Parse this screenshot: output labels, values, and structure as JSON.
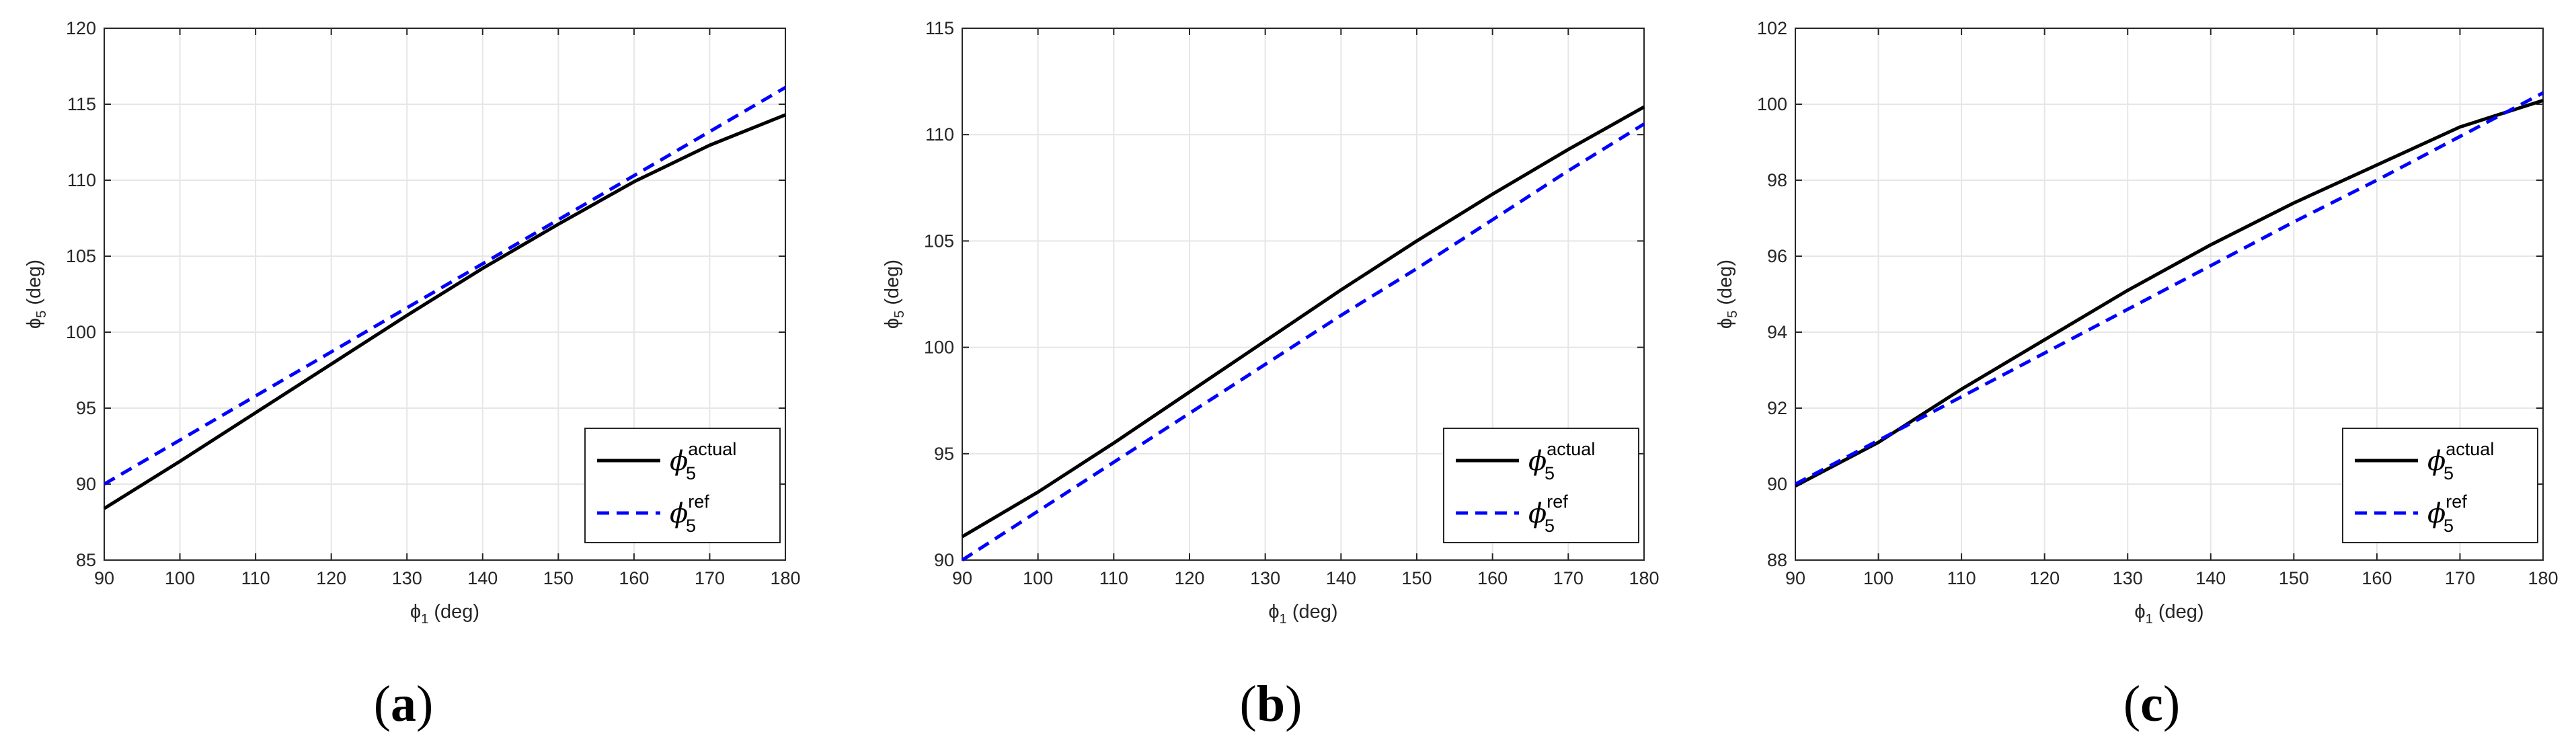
{
  "chart_data": [
    {
      "type": "line",
      "panel_label": "(a)",
      "panel_letter": "a",
      "xlabel": "ϕ1 (deg)",
      "ylabel": "ϕ5 (deg)",
      "xlim": [
        90,
        180
      ],
      "ylim": [
        85,
        120
      ],
      "xticks": [
        90,
        100,
        110,
        120,
        130,
        140,
        150,
        160,
        170,
        180
      ],
      "yticks": [
        85,
        90,
        95,
        100,
        105,
        110,
        115,
        120
      ],
      "grid": true,
      "legend_position": "bottom-right",
      "x": [
        90,
        100,
        110,
        120,
        130,
        140,
        150,
        160,
        170,
        180
      ],
      "series": [
        {
          "name": "ϕ5 actual",
          "symbol": "ϕ",
          "sub": "5",
          "sup": "actual",
          "color": "#000000",
          "style": "solid",
          "values": [
            88.4,
            91.5,
            94.7,
            97.9,
            101.1,
            104.2,
            107.1,
            109.9,
            112.3,
            114.3
          ]
        },
        {
          "name": "ϕ5 ref",
          "symbol": "ϕ",
          "sub": "5",
          "sup": "ref",
          "color": "#0000ff",
          "style": "dashed",
          "values": [
            90.0,
            92.9,
            95.8,
            98.7,
            101.6,
            104.5,
            107.4,
            110.3,
            113.2,
            116.1
          ]
        }
      ]
    },
    {
      "type": "line",
      "panel_label": "(b)",
      "panel_letter": "b",
      "xlabel": "ϕ1 (deg)",
      "ylabel": "ϕ5 (deg)",
      "xlim": [
        90,
        180
      ],
      "ylim": [
        90,
        115
      ],
      "xticks": [
        90,
        100,
        110,
        120,
        130,
        140,
        150,
        160,
        170,
        180
      ],
      "yticks": [
        90,
        95,
        100,
        105,
        110,
        115
      ],
      "grid": true,
      "legend_position": "bottom-right",
      "x": [
        90,
        100,
        110,
        120,
        130,
        140,
        150,
        160,
        170,
        180
      ],
      "series": [
        {
          "name": "ϕ5 actual",
          "symbol": "ϕ",
          "sub": "5",
          "sup": "actual",
          "color": "#000000",
          "style": "solid",
          "values": [
            91.1,
            93.2,
            95.5,
            97.9,
            100.3,
            102.7,
            105.0,
            107.2,
            109.3,
            111.3
          ]
        },
        {
          "name": "ϕ5 ref",
          "symbol": "ϕ",
          "sub": "5",
          "sup": "ref",
          "color": "#0000ff",
          "style": "dashed",
          "values": [
            90.0,
            92.3,
            94.6,
            96.9,
            99.2,
            101.5,
            103.7,
            106.0,
            108.3,
            110.5
          ]
        }
      ]
    },
    {
      "type": "line",
      "panel_label": "(c)",
      "panel_letter": "c",
      "xlabel": "ϕ1 (deg)",
      "ylabel": "ϕ5 (deg)",
      "xlim": [
        90,
        180
      ],
      "ylim": [
        88,
        102
      ],
      "xticks": [
        90,
        100,
        110,
        120,
        130,
        140,
        150,
        160,
        170,
        180
      ],
      "yticks": [
        88,
        90,
        92,
        94,
        96,
        98,
        100,
        102
      ],
      "grid": true,
      "legend_position": "bottom-right",
      "x": [
        90,
        100,
        110,
        120,
        130,
        140,
        150,
        160,
        170,
        180
      ],
      "series": [
        {
          "name": "ϕ5 actual",
          "symbol": "ϕ",
          "sub": "5",
          "sup": "actual",
          "color": "#000000",
          "style": "solid",
          "values": [
            89.95,
            91.1,
            92.5,
            93.8,
            95.1,
            96.3,
            97.4,
            98.4,
            99.4,
            100.1
          ]
        },
        {
          "name": "ϕ5 ref",
          "symbol": "ϕ",
          "sub": "5",
          "sup": "ref",
          "color": "#0000ff",
          "style": "dashed",
          "values": [
            90.0,
            91.15,
            92.3,
            93.45,
            94.6,
            95.75,
            96.9,
            98.0,
            99.15,
            100.3
          ]
        }
      ]
    }
  ]
}
